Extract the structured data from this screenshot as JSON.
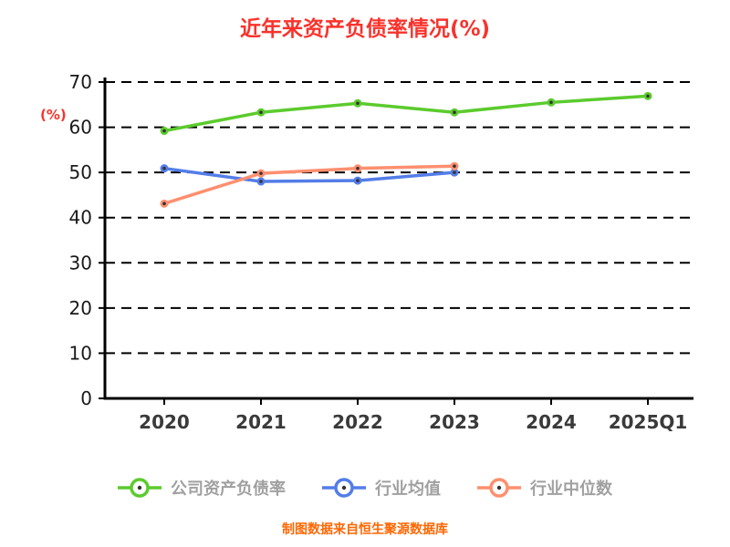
{
  "chart_data": {
    "type": "line",
    "title": "近年来资产负债率情况(%)",
    "ylabel": "(%)",
    "xlabel": "",
    "categories": [
      "2020",
      "2021",
      "2022",
      "2023",
      "2024",
      "2025Q1"
    ],
    "ylim": [
      0,
      70
    ],
    "yticks": [
      0,
      10,
      20,
      30,
      40,
      50,
      60,
      70
    ],
    "grid": "horizontal-dashed-black",
    "legend_position": "bottom",
    "series": [
      {
        "name": "公司资产负债率",
        "color": "#5bcb2d",
        "values": [
          59.2,
          63.3,
          65.3,
          63.3,
          65.5,
          66.9
        ]
      },
      {
        "name": "行业均值",
        "color": "#537de8",
        "values": [
          50.9,
          48.0,
          48.2,
          50.0,
          null,
          null
        ]
      },
      {
        "name": "行业中位数",
        "color": "#ff8f6f",
        "values": [
          43.1,
          49.8,
          50.9,
          51.4,
          null,
          null
        ]
      }
    ]
  },
  "footer": {
    "note": "制图数据来自恒生聚源数据库"
  },
  "colors": {
    "title": "#f9322b",
    "axis": "#000000",
    "y_tick_label": "#1a1a1a",
    "x_tick_label": "#3a3a3a",
    "legend_label": "#a0a0a0",
    "footer": "#ff6600",
    "marker_center": "#333333",
    "background": "#ffffff"
  }
}
